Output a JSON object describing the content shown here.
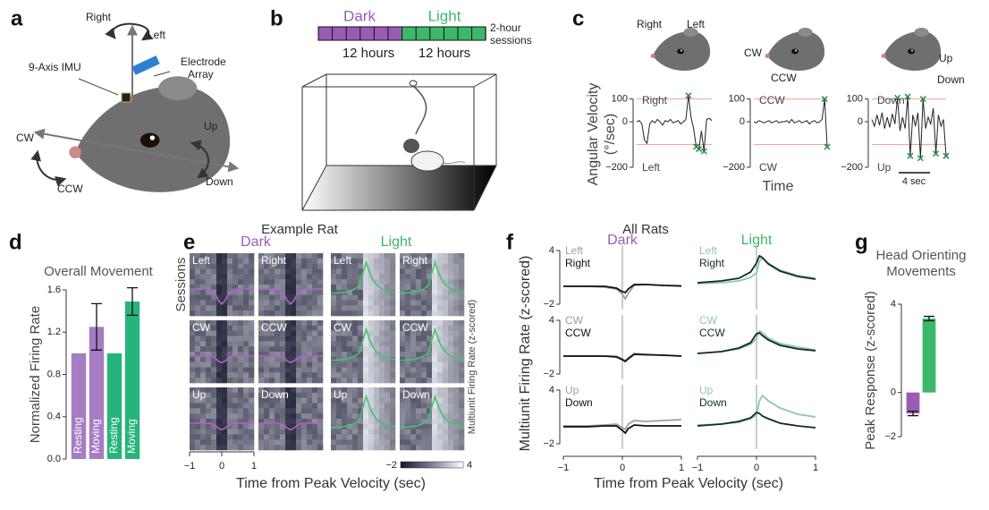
{
  "panel_a": {
    "letter": "a",
    "right": "Right",
    "left": "Left",
    "electrode": [
      "Electrode",
      "Array"
    ],
    "imu": "9-Axis IMU",
    "cw": "CW",
    "ccw": "CCW",
    "up": "Up",
    "down": "Down"
  },
  "panel_b": {
    "letter": "b",
    "dark": "Dark",
    "light": "Light",
    "dark_duration": "12 hours",
    "light_duration": "12 hours",
    "sessions": [
      "2-hour",
      "sessions"
    ]
  },
  "panel_c": {
    "letter": "c",
    "head_labels": [
      [
        "Right",
        "Left"
      ],
      [
        "CW",
        "CCW"
      ],
      [
        "Up",
        "Down"
      ]
    ],
    "ylabel": [
      "Angular Velocity",
      "(°/sec)"
    ],
    "xlabel": "Time",
    "scale_bar": "4 sec"
  },
  "panel_d": {
    "letter": "d"
  },
  "panel_e": {
    "letter": "e",
    "title": "Example Rat",
    "dark": "Dark",
    "light": "Light",
    "ylabel": "Sessions",
    "tiles": [
      [
        "Left",
        "Right",
        "Left",
        "Right"
      ],
      [
        "CW",
        "CCW",
        "CW",
        "CCW"
      ],
      [
        "Up",
        "Down",
        "Up",
        "Down"
      ]
    ],
    "xticks": [
      "−1",
      "0",
      "1"
    ],
    "colorbar_ticks": [
      "−2",
      "4"
    ],
    "colorbar_label": "Multiunit Firing Rate (z-scored)",
    "xlabel": "Time from Peak Velocity (sec)"
  },
  "panel_f": {
    "letter": "f",
    "title": "All Rats",
    "ylabel": "Multiunit Firing Rate (z-scored)",
    "xlabel": "Time from Peak Velocity (sec)"
  },
  "panel_g": {
    "letter": "g"
  },
  "chart_data": [
    {
      "type": "line",
      "color": "#222222",
      "label_top": "Right",
      "label_bottom": "Left",
      "ylim": [
        -220,
        130
      ],
      "yticks": [
        100,
        0,
        {
          "value": -200,
          "label": "−200"
        }
      ],
      "thresholds": [
        100,
        -100
      ],
      "threshold_color": "#f2a3a3",
      "markers": true,
      "marker_color": "#2a8a4a",
      "values": [
        0,
        5,
        -10,
        -80,
        -95,
        -10,
        5,
        -5,
        10,
        0,
        -15,
        5,
        0,
        10,
        -5,
        0,
        5,
        -10,
        0,
        10,
        115,
        20,
        -30,
        -110,
        -120,
        -40,
        -130,
        10,
        15,
        5
      ]
    },
    {
      "type": "line",
      "color": "#222222",
      "label_top": "CCW",
      "label_bottom": "CW",
      "ylim": [
        -220,
        130
      ],
      "yticks": [
        100,
        0,
        {
          "value": -200,
          "label": "−200"
        }
      ],
      "thresholds": [
        100,
        -100
      ],
      "threshold_color": "#f2a3a3",
      "markers": true,
      "marker_color": "#2a8a4a",
      "values": [
        0,
        -5,
        5,
        0,
        -5,
        0,
        5,
        -5,
        0,
        5,
        -5,
        0,
        0,
        5,
        -5,
        10,
        -5,
        0,
        5,
        -5,
        0,
        5,
        -10,
        0,
        5,
        -5,
        0,
        10,
        100,
        -110
      ]
    },
    {
      "type": "line",
      "color": "#222222",
      "label_top": "Down",
      "label_bottom": "Up",
      "ylim": [
        -220,
        130
      ],
      "yticks": [
        100,
        0,
        {
          "value": -200,
          "label": "−200"
        }
      ],
      "thresholds": [
        100,
        -100
      ],
      "threshold_color": "#f2a3a3",
      "markers": true,
      "marker_color": "#2a8a4a",
      "values": [
        10,
        -20,
        30,
        -15,
        40,
        -30,
        20,
        -25,
        35,
        -10,
        105,
        -40,
        20,
        -30,
        110,
        -150,
        30,
        -20,
        40,
        -160,
        100,
        -30,
        20,
        -10,
        60,
        -140,
        30,
        -20,
        10,
        -150
      ]
    },
    {
      "type": "bar",
      "title": "Overall Movement",
      "ylabel": "Normalized Firing Rate",
      "categories": [
        "Resting",
        "Moving",
        "Resting",
        "Moving"
      ],
      "values": [
        1.0,
        1.25,
        1.0,
        1.49
      ],
      "errors": [
        null,
        0.22,
        null,
        0.13
      ],
      "colors": [
        "#a67cc2",
        "#a67cc2",
        "#27b47c",
        "#27b47c"
      ],
      "ylim": [
        0,
        1.6
      ],
      "yticks": [
        {
          "value": 0,
          "label": "0.0"
        },
        0.4,
        0.8,
        1.2,
        1.6
      ]
    },
    {
      "type": "line",
      "title": "Dark",
      "title_color": "#9b5bb5",
      "x": [
        -1,
        -0.6,
        -0.3,
        -0.1,
        0,
        0.05,
        0.1,
        0.2,
        0.4,
        0.7,
        1
      ],
      "xlim": [
        -1,
        1
      ],
      "ylim": [
        -2,
        4
      ],
      "yticks": [
        4,
        {
          "value": -2,
          "label": "−2"
        }
      ],
      "vline": 0,
      "series": [
        {
          "name": "Left",
          "color": "#9e9e9e",
          "values": [
            0,
            0,
            -0.1,
            -0.3,
            -0.9,
            -1.4,
            -0.8,
            0.1,
            0.2,
            0.1,
            0
          ]
        },
        {
          "name": "Right",
          "color": "#111111",
          "values": [
            0,
            0,
            0,
            -0.2,
            -0.6,
            -0.7,
            -0.3,
            0.2,
            0.2,
            0.1,
            0.05
          ]
        }
      ]
    },
    {
      "type": "line",
      "x": [
        -1,
        -0.6,
        -0.3,
        -0.1,
        0,
        0.05,
        0.1,
        0.2,
        0.4,
        0.7,
        1
      ],
      "xlim": [
        -1,
        1
      ],
      "ylim": [
        -2,
        4
      ],
      "yticks": [
        4,
        {
          "value": -2,
          "label": "−2"
        }
      ],
      "vline": 0,
      "series": [
        {
          "name": "CW",
          "color": "#9e9e9e",
          "values": [
            0,
            0,
            0,
            0,
            -0.3,
            -0.5,
            -0.2,
            0.3,
            0.2,
            0.1,
            0
          ]
        },
        {
          "name": "CCW",
          "color": "#111111",
          "values": [
            0,
            0,
            0,
            -0.1,
            -0.4,
            -0.6,
            -0.3,
            0.2,
            0.15,
            0.1,
            0
          ]
        }
      ]
    },
    {
      "type": "line",
      "x": [
        -1,
        -0.6,
        -0.3,
        -0.1,
        0,
        0.05,
        0.1,
        0.2,
        0.4,
        0.7,
        1
      ],
      "xlim": [
        -1,
        1
      ],
      "ylim": [
        -2,
        4
      ],
      "yticks": [
        4,
        {
          "value": -2,
          "label": "−2"
        }
      ],
      "xticks": [
        {
          "value": -1,
          "label": "−1"
        },
        0,
        1
      ],
      "vline": 0,
      "series": [
        {
          "name": "Up",
          "color": "#9e9e9e",
          "values": [
            0,
            0,
            0.1,
            0.2,
            -0.2,
            -0.4,
            0.2,
            0.6,
            0.5,
            0.6,
            0.7
          ]
        },
        {
          "name": "Down",
          "color": "#111111",
          "values": [
            -0.1,
            -0.1,
            0,
            0,
            -0.5,
            -0.8,
            -0.3,
            0.1,
            0,
            0,
            0
          ]
        }
      ]
    },
    {
      "type": "line",
      "title": "Light",
      "title_color": "#3cb86a",
      "x": [
        -1,
        -0.6,
        -0.3,
        -0.1,
        0,
        0.05,
        0.1,
        0.2,
        0.4,
        0.7,
        1
      ],
      "xlim": [
        -1,
        1
      ],
      "ylim": [
        -2,
        4
      ],
      "vline": 0,
      "series": [
        {
          "name": "Left",
          "color": "#8cc9a4",
          "values": [
            0.3,
            0.4,
            0.6,
            1.0,
            1.5,
            2.8,
            3.2,
            2.6,
            1.8,
            1.2,
            0.9
          ]
        },
        {
          "name": "Right",
          "color": "#0f2f1c",
          "values": [
            0.4,
            0.6,
            0.9,
            1.6,
            2.6,
            3.4,
            3.2,
            2.5,
            1.7,
            1.1,
            0.8
          ]
        }
      ]
    },
    {
      "type": "line",
      "x": [
        -1,
        -0.6,
        -0.3,
        -0.1,
        0,
        0.05,
        0.1,
        0.2,
        0.4,
        0.7,
        1
      ],
      "xlim": [
        -1,
        1
      ],
      "ylim": [
        -2,
        4
      ],
      "vline": 0,
      "series": [
        {
          "name": "CW",
          "color": "#8cc9a4",
          "values": [
            0.3,
            0.5,
            0.8,
            1.3,
            2.0,
            2.8,
            2.6,
            2.0,
            1.4,
            1.0,
            0.7
          ]
        },
        {
          "name": "CCW",
          "color": "#0f2f1c",
          "values": [
            0.3,
            0.5,
            0.9,
            1.5,
            2.5,
            2.6,
            2.3,
            1.8,
            1.2,
            0.8,
            0.6
          ]
        }
      ]
    },
    {
      "type": "line",
      "x": [
        -1,
        -0.6,
        -0.3,
        -0.1,
        0,
        0.05,
        0.1,
        0.2,
        0.4,
        0.7,
        1
      ],
      "xlim": [
        -1,
        1
      ],
      "ylim": [
        -2,
        4
      ],
      "xticks": [
        {
          "value": -1,
          "label": "−1"
        },
        0,
        1
      ],
      "vline": 0,
      "series": [
        {
          "name": "Up",
          "color": "#8cc9a4",
          "values": [
            0.1,
            0.2,
            0.4,
            0.8,
            1.2,
            2.8,
            3.4,
            2.8,
            2.0,
            1.3,
            1.0
          ]
        },
        {
          "name": "Down",
          "color": "#0f2f1c",
          "values": [
            0,
            0.2,
            0.5,
            0.9,
            1.5,
            1.4,
            1.1,
            0.8,
            0.3,
            0.0,
            -0.2
          ]
        }
      ]
    },
    {
      "type": "bar",
      "title": [
        "Head Orienting",
        "Movements"
      ],
      "ylabel": "Peak Response (z-scored)",
      "values": [
        -0.95,
        3.35
      ],
      "errors": [
        0.1,
        0.1
      ],
      "colors": [
        "#9b5bb5",
        "#3cb86a"
      ],
      "ylim": [
        -2,
        4
      ],
      "yticks": [
        4,
        0,
        {
          "value": -2,
          "label": "−2"
        }
      ]
    }
  ]
}
